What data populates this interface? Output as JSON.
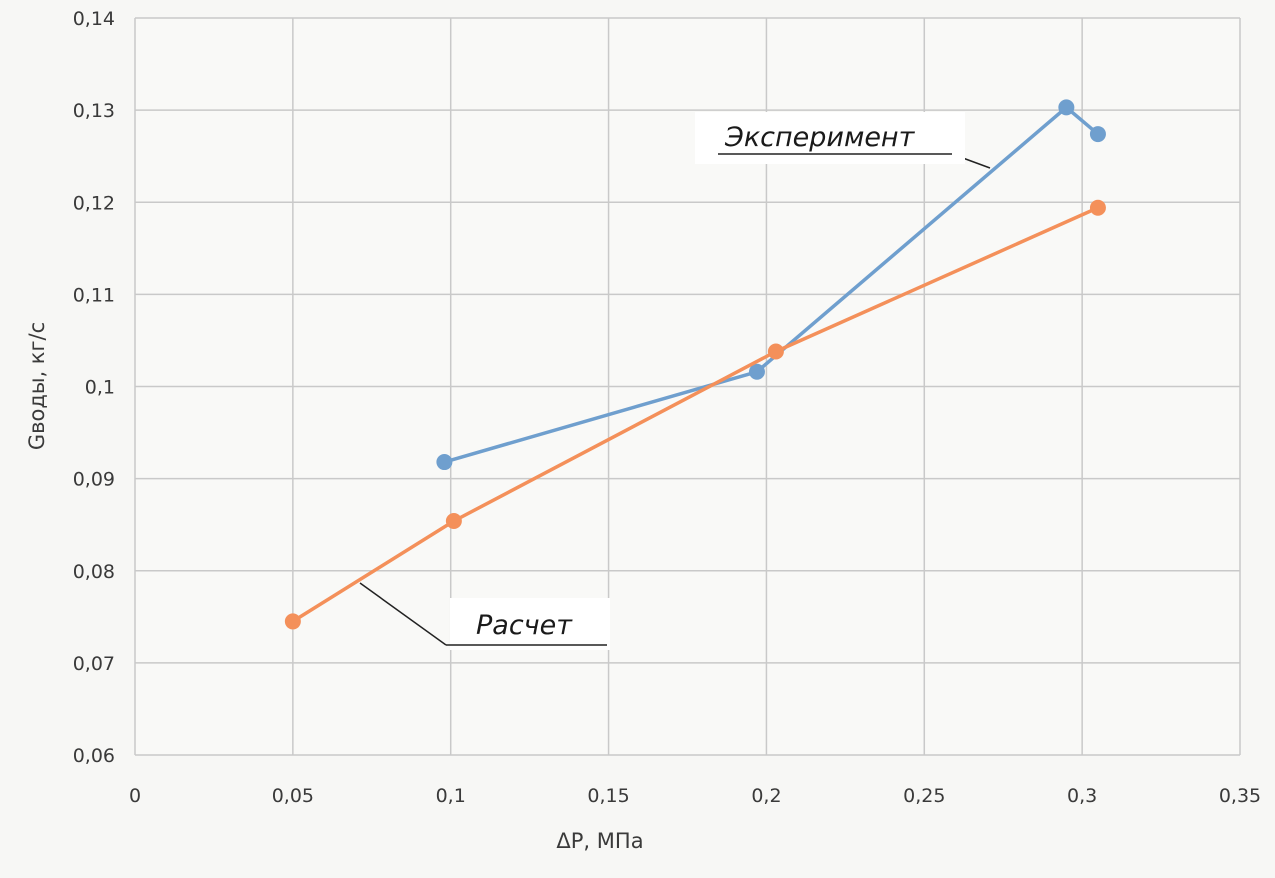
{
  "chart_data": {
    "type": "line",
    "xlabel": "ΔP, МПа",
    "ylabel": "Gводы, кг/с",
    "xlim": [
      0,
      0.35
    ],
    "ylim": [
      0.06,
      0.14
    ],
    "x_ticks": [
      "0",
      "0,05",
      "0,1",
      "0,15",
      "0,2",
      "0,25",
      "0,3",
      "0,35"
    ],
    "y_ticks": [
      "0,06",
      "0,07",
      "0,08",
      "0,09",
      "0,1",
      "0,11",
      "0,12",
      "0,13",
      "0,14"
    ],
    "grid": true,
    "series": [
      {
        "name": "Эксперимент",
        "color": "#6f9fce",
        "points": [
          {
            "x": 0.098,
            "y": 0.0918
          },
          {
            "x": 0.197,
            "y": 0.1016
          },
          {
            "x": 0.295,
            "y": 0.1303
          },
          {
            "x": 0.305,
            "y": 0.1274
          }
        ]
      },
      {
        "name": "Расчет",
        "color": "#f4905a",
        "points": [
          {
            "x": 0.05,
            "y": 0.0745
          },
          {
            "x": 0.101,
            "y": 0.0854
          },
          {
            "x": 0.203,
            "y": 0.1038
          },
          {
            "x": 0.305,
            "y": 0.1194
          }
        ]
      }
    ]
  }
}
